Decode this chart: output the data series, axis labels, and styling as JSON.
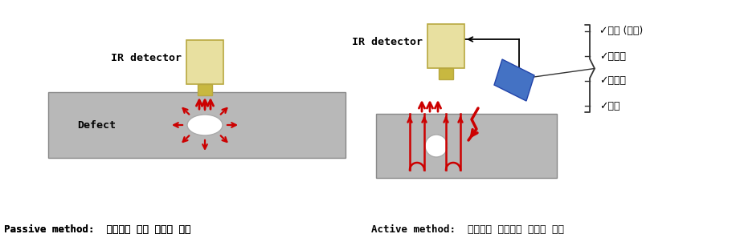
{
  "bg_color": "#ffffff",
  "gray_rect_color": "#b8b8b8",
  "detector_body_color": "#e8e0a0",
  "detector_body_edge": "#b8a840",
  "detector_nub_color": "#c8b840",
  "arrow_color": "#cc0000",
  "blue_prism_color": "#4472c4",
  "blue_prism_edge": "#2244aa",
  "defect_fill": "#ffffff",
  "defect_edge": "#aaaaaa",
  "brace_color": "#333333",
  "passive_label": "Passive method:  대상체의 자체 발열을 측정",
  "active_label": "Active method:  에너지를 입사하고 반응을 측정",
  "ir_detector_text": "IR detector",
  "defect_text": "Defect",
  "checklist": [
    "✓광원 (램프)",
    "✓초음파",
    "✓외전류",
    "✓진동"
  ]
}
